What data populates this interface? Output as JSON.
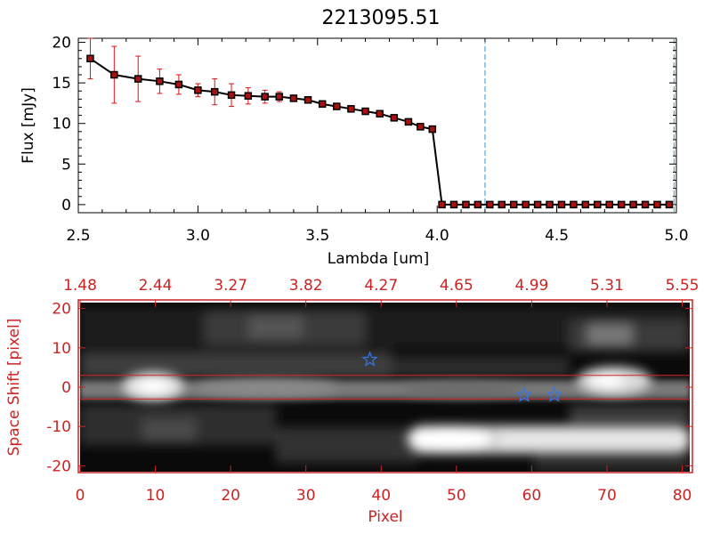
{
  "colors": {
    "background": "#ffffff",
    "axis_black": "#000000",
    "axis_red": "#cc2222",
    "error_bar": "#dd1111",
    "marker_fill": "#aa1111",
    "dashed_line": "#3399dd",
    "star": "#3377ee",
    "band_line": "#dd2222"
  },
  "chart_data": [
    {
      "type": "line",
      "title": "2213095.51",
      "xlabel": "Lambda [um]",
      "ylabel": "Flux [mJy]",
      "xlim": [
        2.5,
        5.0
      ],
      "ylim": [
        -1,
        20.5
      ],
      "xticks": [
        "2.5",
        "3.0",
        "3.5",
        "4.0",
        "4.5",
        "5.0"
      ],
      "xtick_values": [
        2.5,
        3.0,
        3.5,
        4.0,
        4.5,
        5.0
      ],
      "yticks": [
        "0",
        "5",
        "10",
        "15",
        "20"
      ],
      "ytick_values": [
        0,
        5,
        10,
        15,
        20
      ],
      "series": [
        {
          "x": [
            2.55,
            2.65,
            2.75,
            2.84,
            2.92,
            3.0,
            3.07,
            3.14,
            3.21,
            3.28,
            3.34,
            3.4,
            3.46,
            3.52,
            3.58,
            3.64,
            3.7,
            3.76,
            3.82,
            3.88,
            3.93,
            3.98,
            4.02,
            4.07,
            4.12,
            4.17,
            4.22,
            4.27,
            4.32,
            4.37,
            4.42,
            4.47,
            4.52,
            4.57,
            4.62,
            4.67,
            4.72,
            4.77,
            4.82,
            4.87,
            4.92,
            4.97
          ],
          "y": [
            18.0,
            16.0,
            15.5,
            15.2,
            14.8,
            14.1,
            13.9,
            13.5,
            13.4,
            13.3,
            13.3,
            13.1,
            12.9,
            12.4,
            12.1,
            11.8,
            11.5,
            11.2,
            10.7,
            10.2,
            9.6,
            9.3,
            0,
            0,
            0,
            0,
            0,
            0,
            0,
            0,
            0,
            0,
            0,
            0,
            0,
            0,
            0,
            0,
            0,
            0,
            0,
            0
          ],
          "yerr": [
            2.5,
            3.5,
            2.8,
            1.5,
            1.2,
            0.8,
            1.6,
            1.4,
            1.0,
            0.8,
            0.6,
            0.3,
            0.3,
            0.3,
            0.3,
            0.3,
            0.3,
            0.3,
            0.3,
            0.3,
            0.3,
            0.3,
            0.05,
            0.05,
            0.05,
            0.05,
            0.05,
            0.05,
            0.05,
            0.05,
            0.05,
            0.05,
            0.05,
            0.05,
            0.05,
            0.05,
            0.05,
            0.05,
            0.05,
            0.05,
            0.05,
            0.05
          ]
        }
      ],
      "vertical_lines": [
        4.2,
        4.99
      ]
    },
    {
      "type": "heatmap",
      "xlabel": "Pixel",
      "ylabel": "Space Shift [pixel]",
      "xlim": [
        0,
        81
      ],
      "ylim": [
        -21.5,
        21.5
      ],
      "xticks": [
        "0",
        "10",
        "20",
        "30",
        "40",
        "50",
        "60",
        "70",
        "80"
      ],
      "xtick_values": [
        0,
        10,
        20,
        30,
        40,
        50,
        60,
        70,
        80
      ],
      "yticks": [
        "-20",
        "-10",
        "0",
        "10",
        "20"
      ],
      "ytick_values": [
        -20,
        -10,
        0,
        10,
        20
      ],
      "top_ticks": [
        "1.48",
        "2.44",
        "3.27",
        "3.82",
        "4.27",
        "4.65",
        "4.99",
        "5.31",
        "5.55"
      ],
      "top_tick_values": [
        0,
        10,
        20,
        30,
        40,
        50,
        60,
        70,
        80
      ],
      "band_lines": [
        3,
        -3
      ],
      "stars": [
        {
          "x": 38.5,
          "y": 7
        },
        {
          "x": 59,
          "y": -2
        },
        {
          "x": 63,
          "y": -2
        }
      ]
    }
  ]
}
